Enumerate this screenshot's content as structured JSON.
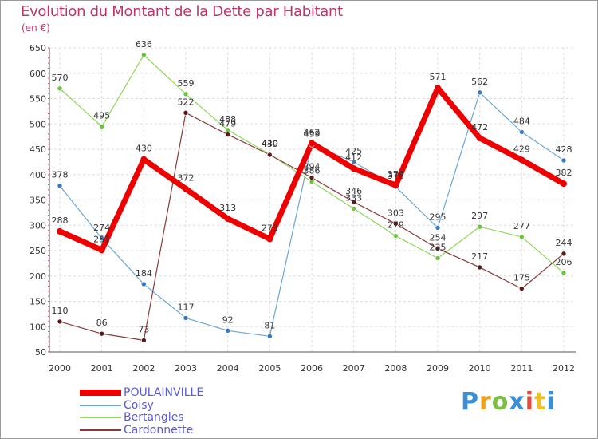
{
  "header": {
    "title": "Evolution du Montant de la Dette par Habitant",
    "unit": "(en €)"
  },
  "logo": {
    "text": "Proxiti",
    "letter_colors": [
      "#3a8fd6",
      "#f0a020",
      "#7bc043",
      "#3a8fd6",
      "#e84a3a",
      "#f0c020",
      "#3a8fd6"
    ]
  },
  "chart_data": {
    "type": "line",
    "title": "Evolution du Montant de la Dette par Habitant",
    "ylabel": "(en €)",
    "x": [
      "2000",
      "2001",
      "2002",
      "2003",
      "2004",
      "2005",
      "2006",
      "2007",
      "2008",
      "2009",
      "2010",
      "2011",
      "2012"
    ],
    "ylim": [
      50,
      650
    ],
    "yticks": [
      "50",
      "100",
      "150",
      "200",
      "250",
      "300",
      "350",
      "400",
      "450",
      "500",
      "550",
      "600",
      "650"
    ],
    "grid": true,
    "legend_position": "bottom-left",
    "series": [
      {
        "name": "POULAINVILLE",
        "color": "#ee0000",
        "point_color": "#ee0000",
        "width": 7,
        "values": [
          288,
          251,
          430,
          372,
          313,
          273,
          462,
          412,
          379,
          571,
          472,
          429,
          382
        ],
        "labels": [
          "288",
          "251",
          "430",
          "372",
          "313",
          "273",
          "462",
          "412",
          "379",
          "571",
          "472",
          "429",
          "382"
        ]
      },
      {
        "name": "Coisy",
        "color": "#6aa6d6",
        "point_color": "#3a78c2",
        "width": 1.2,
        "values": [
          378,
          274,
          184,
          117,
          92,
          81,
          459,
          425,
          376,
          295,
          562,
          484,
          428
        ],
        "labels": [
          "378",
          "274",
          "184",
          "117",
          "92",
          "81",
          "459",
          "425",
          "376",
          "295",
          "562",
          "484",
          "428"
        ]
      },
      {
        "name": "Bertangles",
        "color": "#8fd65a",
        "point_color": "#6cc43a",
        "width": 1.2,
        "values": [
          570,
          495,
          636,
          559,
          488,
          440,
          386,
          333,
          279,
          235,
          297,
          277,
          206
        ],
        "labels": [
          "570",
          "495",
          "636",
          "559",
          "488",
          "440",
          "386",
          "333",
          "279",
          "235",
          "297",
          "277",
          "206"
        ]
      },
      {
        "name": "Cardonnette",
        "color": "#8a3a3a",
        "point_color": "#5a1a1a",
        "width": 1.2,
        "values": [
          110,
          86,
          73,
          522,
          479,
          439,
          394,
          346,
          303,
          254,
          217,
          175,
          244
        ],
        "labels": [
          "110",
          "86",
          "73",
          "522",
          "479",
          "439",
          "394",
          "346",
          "303",
          "254",
          "217",
          "175",
          "244"
        ]
      }
    ]
  }
}
